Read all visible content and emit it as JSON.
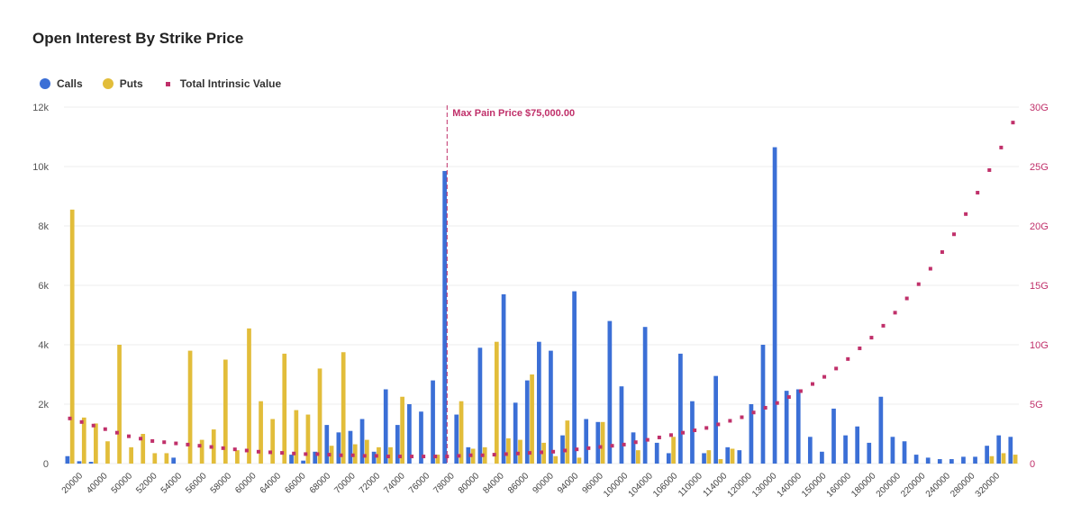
{
  "chart_data": {
    "type": "bar",
    "title": "Open Interest By Strike Price",
    "legend_placement": "top-left",
    "colors": {
      "calls": "#3b6fd6",
      "puts": "#e2bd3a",
      "intrinsic": "#c0306a",
      "grid": "#eeeeee"
    },
    "y_left": {
      "ylim": [
        0,
        12000
      ],
      "ticks": [
        0,
        2000,
        4000,
        6000,
        8000,
        10000,
        12000
      ],
      "tick_labels": [
        "0",
        "2k",
        "4k",
        "6k",
        "8k",
        "10k",
        "12k"
      ]
    },
    "y_right": {
      "ylim": [
        0,
        30
      ],
      "ticks": [
        0,
        5,
        10,
        15,
        20,
        25,
        30
      ],
      "tick_labels": [
        "0",
        "5G",
        "10G",
        "15G",
        "20G",
        "25G",
        "30G"
      ]
    },
    "x_tick_labels": [
      "20000",
      "40000",
      "50000",
      "52000",
      "54000",
      "56000",
      "58000",
      "60000",
      "64000",
      "66000",
      "68000",
      "70000",
      "72000",
      "74000",
      "76000",
      "78000",
      "80000",
      "84000",
      "86000",
      "90000",
      "94000",
      "96000",
      "100000",
      "104000",
      "106000",
      "110000",
      "114000",
      "120000",
      "130000",
      "140000",
      "150000",
      "160000",
      "180000",
      "200000",
      "220000",
      "240000",
      "280000",
      "320000"
    ],
    "series": [
      {
        "name": "Calls",
        "values": [
          250,
          80,
          60,
          0,
          0,
          0,
          0,
          0,
          0,
          200,
          0,
          0,
          0,
          0,
          0,
          0,
          0,
          0,
          0,
          300,
          100,
          400,
          1300,
          1050,
          1100,
          1500,
          400,
          2500,
          1300,
          2000,
          1750,
          2800,
          9850,
          1650,
          550,
          3900,
          0,
          5700,
          2050,
          2800,
          4100,
          3800,
          950,
          5800,
          1500,
          1400,
          4800,
          2600,
          1050,
          4600,
          700,
          350,
          3700,
          2100,
          350,
          2950,
          550,
          450,
          2000,
          4000,
          10650,
          2450,
          2500,
          900,
          400,
          1850,
          950,
          1250,
          700,
          2250,
          900,
          750,
          300,
          200,
          150,
          150,
          230,
          230,
          600,
          950,
          900
        ],
        "values_note": ""
      },
      {
        "name": "Puts",
        "values": [
          8550,
          1550,
          1350,
          750,
          4000,
          550,
          1000,
          350,
          350,
          0,
          3800,
          800,
          1150,
          3500,
          450,
          4550,
          2100,
          1500,
          3700,
          1800,
          1650,
          3200,
          600,
          3750,
          650,
          800,
          550,
          550,
          2250,
          0,
          0,
          300,
          0,
          2100,
          500,
          550,
          4100,
          850,
          800,
          3000,
          700,
          250,
          1450,
          200,
          0,
          1400,
          0,
          0,
          450,
          0,
          0,
          900,
          0,
          0,
          450,
          150,
          500,
          0,
          0,
          0,
          0,
          0,
          0,
          0,
          0,
          0,
          0,
          0,
          0,
          0,
          0,
          0,
          0,
          0,
          0,
          0,
          0,
          0,
          250,
          350,
          300
        ]
      },
      {
        "name": "Total Intrinsic Value",
        "values": [
          3.8,
          3.5,
          3.2,
          2.9,
          2.6,
          2.3,
          2.1,
          1.9,
          1.8,
          1.7,
          1.6,
          1.5,
          1.4,
          1.3,
          1.2,
          1.1,
          1.0,
          0.95,
          0.9,
          0.85,
          0.8,
          0.8,
          0.75,
          0.7,
          0.7,
          0.65,
          0.65,
          0.6,
          0.6,
          0.6,
          0.6,
          0.6,
          0.6,
          0.65,
          0.7,
          0.7,
          0.75,
          0.8,
          0.85,
          0.9,
          0.95,
          1.0,
          1.1,
          1.2,
          1.3,
          1.4,
          1.5,
          1.6,
          1.8,
          2.0,
          2.2,
          2.4,
          2.6,
          2.8,
          3.0,
          3.3,
          3.6,
          3.9,
          4.3,
          4.7,
          5.1,
          5.6,
          6.1,
          6.7,
          7.3,
          8.0,
          8.8,
          9.7,
          10.6,
          11.6,
          12.7,
          13.9,
          15.1,
          16.4,
          17.8,
          19.3,
          21.0,
          22.8,
          24.7,
          26.6,
          28.7
        ]
      }
    ],
    "annotation": {
      "label": "Max Pain Price $75,000.00",
      "index": 32
    }
  }
}
